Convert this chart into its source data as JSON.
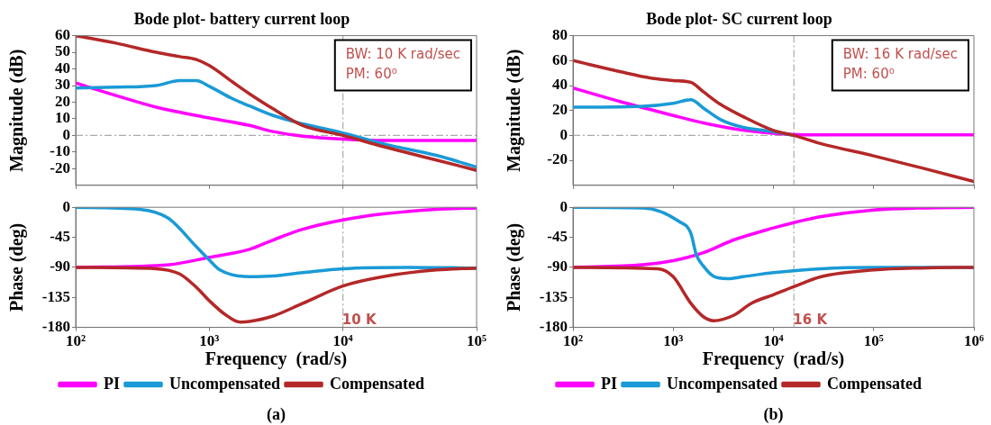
{
  "chart_data": [
    {
      "type": "line",
      "title": "Bode plot- battery current loop",
      "ylabel": "Magnitude (dB)",
      "log": "x",
      "xlim": [
        100,
        100000
      ],
      "xticks": [
        {
          "value": 100,
          "label": null
        },
        {
          "value": 1000,
          "label": null
        },
        {
          "value": 10000,
          "label": null
        },
        {
          "value": 100000,
          "label": null
        }
      ],
      "ylim": [
        -30,
        60
      ],
      "yticks": [
        -20,
        -10,
        0,
        10,
        20,
        30,
        40,
        50,
        60
      ],
      "tick_labels": "y",
      "grid": false,
      "legend": false,
      "marker": "none",
      "line_style": "solid",
      "ref_lines": [
        {
          "axis": "x",
          "value": 10000,
          "color": "#aaaaaa",
          "line_style": "dashed"
        },
        {
          "axis": "y",
          "value": 0,
          "color": "#aaaaaa",
          "line_style": "dashed"
        }
      ],
      "annotations": [
        "BW: 10 K rad/sec",
        "PM: 60⁰"
      ],
      "series": [
        {
          "color": "#ff00ff",
          "x": [
            100,
            200,
            400,
            1000,
            2000,
            3000,
            5000,
            10000,
            20000,
            50000,
            100000
          ],
          "values": [
            31.5,
            24,
            17,
            10.5,
            6,
            2.3,
            -0.4,
            -2.2,
            -3,
            -3,
            -3
          ]
        },
        {
          "color": "#1a9ad6",
          "x": [
            100,
            200,
            400,
            600,
            800,
            1000,
            1500,
            2000,
            3000,
            5000,
            10000,
            20000,
            50000,
            100000
          ],
          "values": [
            28.5,
            29,
            30,
            33,
            33,
            29.5,
            22,
            17.7,
            12,
            7,
            1.5,
            -5,
            -12,
            -19
          ]
        },
        {
          "color": "#b42828",
          "x": [
            100,
            200,
            400,
            600,
            800,
            1000,
            1500,
            2000,
            3000,
            5000,
            10000,
            20000,
            50000,
            100000
          ],
          "values": [
            60,
            55.5,
            50,
            47.4,
            45.6,
            42,
            32,
            25,
            16,
            6,
            0,
            -6.7,
            -14.8,
            -21
          ]
        }
      ]
    },
    {
      "type": "line",
      "xlabel": "Frequency  (rad/s)",
      "ylabel": "Phase (deg)",
      "log": "x",
      "xlim": [
        100,
        100000
      ],
      "xticks": [
        {
          "value": 100,
          "label": "10²"
        },
        {
          "value": 1000,
          "label": "10³"
        },
        {
          "value": 10000,
          "label": "10⁴"
        },
        {
          "value": 100000,
          "label": "10⁵"
        }
      ],
      "ylim": [
        -180,
        0
      ],
      "yticks": [
        -180,
        -135,
        -90,
        -45,
        0
      ],
      "grid": false,
      "legend": "bottom",
      "marker": "none",
      "line_style": "solid",
      "ref_lines": [
        {
          "axis": "x",
          "value": 10000,
          "color": "#aaaaaa",
          "line_style": "dashed"
        }
      ],
      "annotations": [
        {
          "text": "10 K",
          "x": 10000,
          "y": -170
        },
        "(a)"
      ],
      "series": [
        {
          "name": "PI",
          "color": "#ff00ff",
          "x": [
            100,
            500,
            1000,
            2000,
            3000,
            5000,
            10000,
            20000,
            50000,
            100000
          ],
          "values": [
            -90,
            -86,
            -75,
            -63,
            -49,
            -33,
            -19,
            -10,
            -3,
            -1
          ]
        },
        {
          "name": "Uncompensated",
          "color": "#1a9ad6",
          "x": [
            100,
            300,
            490,
            800,
            1000,
            1200,
            2000,
            3000,
            5000,
            10000,
            30000,
            100000
          ],
          "values": [
            0,
            -3,
            -16,
            -59,
            -79,
            -94,
            -104,
            -103,
            -98,
            -92,
            -90,
            -91
          ]
        },
        {
          "name": "Compensated",
          "color": "#b42828",
          "x": [
            100,
            400,
            600,
            800,
            1000,
            1300,
            1700,
            2000,
            3000,
            5000,
            10000,
            20000,
            50000,
            100000
          ],
          "values": [
            -90,
            -92,
            -100,
            -120,
            -140,
            -160,
            -172,
            -171,
            -163,
            -144,
            -118,
            -104,
            -94,
            -91
          ]
        }
      ]
    },
    {
      "type": "line",
      "title": "Bode plot- SC current loop",
      "ylabel": "Magnitude (dB)",
      "log": "x",
      "xlim": [
        100,
        1000000
      ],
      "xticks": [
        {
          "value": 100,
          "label": null
        },
        {
          "value": 1000,
          "label": null
        },
        {
          "value": 10000,
          "label": null
        },
        {
          "value": 100000,
          "label": null
        },
        {
          "value": 1000000,
          "label": null
        }
      ],
      "ylim": [
        -40,
        80
      ],
      "yticks": [
        -20,
        0,
        20,
        40,
        60,
        80
      ],
      "tick_labels": "y",
      "grid": false,
      "legend": false,
      "marker": "none",
      "line_style": "solid",
      "ref_lines": [
        {
          "axis": "x",
          "value": 16000,
          "color": "#aaaaaa",
          "line_style": "dashed"
        },
        {
          "axis": "y",
          "value": 0,
          "color": "#aaaaaa",
          "line_style": "dashed"
        }
      ],
      "annotations": [
        "BW: 16 K rad/sec",
        "PM: 60⁰"
      ],
      "series": [
        {
          "color": "#ff00ff",
          "x": [
            100,
            300,
            1000,
            2000,
            4000,
            10000,
            20000,
            100000,
            1000000
          ],
          "values": [
            38,
            27,
            16,
            10,
            5.3,
            1.7,
            0.5,
            0.5,
            0.5
          ]
        },
        {
          "color": "#1a9ad6",
          "x": [
            100,
            500,
            1000,
            1500,
            2000,
            3000,
            5000,
            10000,
            16000
          ],
          "values": [
            22.6,
            23.4,
            25.8,
            28.7,
            22,
            12.5,
            6.5,
            3,
            0
          ]
        },
        {
          "color": "#b42828",
          "x": [
            100,
            300,
            600,
            1000,
            1500,
            2000,
            3000,
            5000,
            10000,
            16000,
            30000,
            100000,
            300000,
            1000000
          ],
          "values": [
            60,
            51,
            46,
            44,
            42.6,
            35,
            24.6,
            15,
            4,
            0,
            -6.7,
            -16.4,
            -26,
            -37
          ]
        }
      ]
    },
    {
      "type": "line",
      "xlabel": "Frequency  (rad/s)",
      "ylabel": "Phase (deg)",
      "log": "x",
      "xlim": [
        100,
        1000000
      ],
      "xticks": [
        {
          "value": 100,
          "label": "10²"
        },
        {
          "value": 1000,
          "label": "10³"
        },
        {
          "value": 10000,
          "label": "10⁴"
        },
        {
          "value": 100000,
          "label": "10⁵"
        },
        {
          "value": 1000000,
          "label": "10⁶"
        }
      ],
      "ylim": [
        -180,
        0
      ],
      "yticks": [
        -180,
        -135,
        -90,
        -45,
        0
      ],
      "grid": false,
      "legend": "bottom",
      "marker": "none",
      "line_style": "solid",
      "ref_lines": [
        {
          "axis": "x",
          "value": 16000,
          "color": "#aaaaaa",
          "line_style": "dashed"
        }
      ],
      "annotations": [
        {
          "text": "16 K",
          "x": 16000,
          "y": -170
        },
        "(b)"
      ],
      "series": [
        {
          "name": "PI",
          "color": "#ff00ff",
          "x": [
            100,
            500,
            1000,
            2000,
            4000,
            10000,
            16000,
            30000,
            100000,
            300000,
            1000000
          ],
          "values": [
            -90,
            -86,
            -80,
            -68,
            -49,
            -31,
            -23,
            -14,
            -4,
            -1,
            0
          ]
        },
        {
          "name": "Uncompensated",
          "color": "#1a9ad6",
          "x": [
            100,
            500,
            1137,
            1500,
            1700,
            2000,
            2500,
            3500,
            5000,
            10000,
            30000,
            100000,
            1000000
          ],
          "values": [
            0,
            -1,
            -21,
            -39,
            -71,
            -88,
            -103,
            -107,
            -104,
            -98,
            -92,
            -90,
            -90
          ]
        },
        {
          "name": "Compensated",
          "color": "#b42828",
          "x": [
            100,
            700,
            1000,
            1500,
            2000,
            2530,
            4000,
            6000,
            10000,
            16000,
            30000,
            100000,
            300000,
            1000000
          ],
          "values": [
            -90,
            -92,
            -104,
            -144,
            -164,
            -170,
            -162,
            -144,
            -131,
            -119,
            -104,
            -94,
            -91,
            -90
          ]
        }
      ]
    }
  ]
}
